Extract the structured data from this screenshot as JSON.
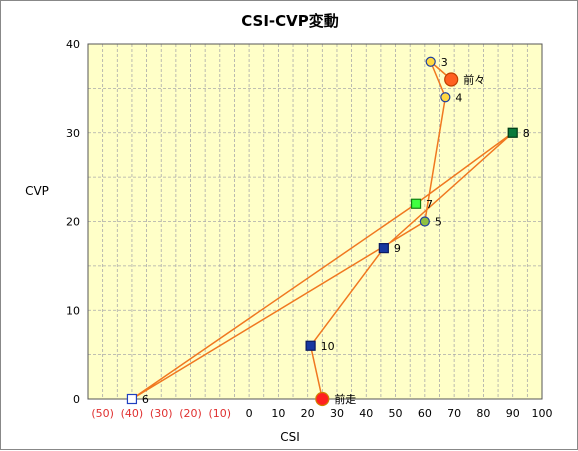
{
  "chart_data": {
    "type": "scatter",
    "title": "CSI-CVP変動",
    "xlabel": "CSI",
    "ylabel": "CVP",
    "xlim": [
      -55,
      100
    ],
    "ylim": [
      0,
      40
    ],
    "x_ticks": [
      {
        "value": -50,
        "label": "(50)",
        "negative": true
      },
      {
        "value": -40,
        "label": "(40)",
        "negative": true
      },
      {
        "value": -30,
        "label": "(30)",
        "negative": true
      },
      {
        "value": -20,
        "label": "(20)",
        "negative": true
      },
      {
        "value": -10,
        "label": "(10)",
        "negative": true
      },
      {
        "value": 0,
        "label": "0",
        "negative": false
      },
      {
        "value": 10,
        "label": "10",
        "negative": false
      },
      {
        "value": 20,
        "label": "20",
        "negative": false
      },
      {
        "value": 30,
        "label": "30",
        "negative": false
      },
      {
        "value": 40,
        "label": "40",
        "negative": false
      },
      {
        "value": 50,
        "label": "50",
        "negative": false
      },
      {
        "value": 60,
        "label": "60",
        "negative": false
      },
      {
        "value": 70,
        "label": "70",
        "negative": false
      },
      {
        "value": 80,
        "label": "80",
        "negative": false
      },
      {
        "value": 90,
        "label": "90",
        "negative": false
      },
      {
        "value": 100,
        "label": "100",
        "negative": false
      }
    ],
    "y_ticks": [
      {
        "value": 0,
        "label": "0"
      },
      {
        "value": 10,
        "label": "10"
      },
      {
        "value": 20,
        "label": "20"
      },
      {
        "value": 30,
        "label": "30"
      },
      {
        "value": 40,
        "label": "40"
      }
    ],
    "grid": true,
    "line_color": "#f07820",
    "plot_background": "#ffffc8",
    "grid_color": "#aaaaaa",
    "points": [
      {
        "label": "前走",
        "x": 25,
        "y": 0,
        "marker": "circle",
        "fill": "#ff2020",
        "stroke": "#d08000",
        "size": "large"
      },
      {
        "label": "10",
        "x": 21,
        "y": 6,
        "marker": "square",
        "fill": "#1838a0",
        "stroke": "#0a1a60",
        "size": "normal"
      },
      {
        "label": "9",
        "x": 46,
        "y": 17,
        "marker": "square",
        "fill": "#1838a0",
        "stroke": "#0a1a60",
        "size": "normal"
      },
      {
        "label": "8",
        "x": 90,
        "y": 30,
        "marker": "square",
        "fill": "#0a7a3a",
        "stroke": "#003a14",
        "size": "normal"
      },
      {
        "label": "7",
        "x": 57,
        "y": 22,
        "marker": "square",
        "fill": "#40ff40",
        "stroke": "#108010",
        "size": "normal"
      },
      {
        "label": "6",
        "x": -40,
        "y": 0,
        "marker": "square",
        "fill": "#ffffff",
        "stroke": "#2040c0",
        "size": "normal"
      },
      {
        "label": "5",
        "x": 60,
        "y": 20,
        "marker": "circle",
        "fill": "#90c040",
        "stroke": "#2040a0",
        "size": "normal"
      },
      {
        "label": "4",
        "x": 67,
        "y": 34,
        "marker": "circle",
        "fill": "#ffd840",
        "stroke": "#2040a0",
        "size": "normal"
      },
      {
        "label": "3",
        "x": 62,
        "y": 38,
        "marker": "circle",
        "fill": "#ffd840",
        "stroke": "#2040a0",
        "size": "normal"
      },
      {
        "label": "前々",
        "x": 69,
        "y": 36,
        "marker": "circle",
        "fill": "#ff6020",
        "stroke": "#c04000",
        "size": "large"
      }
    ]
  }
}
